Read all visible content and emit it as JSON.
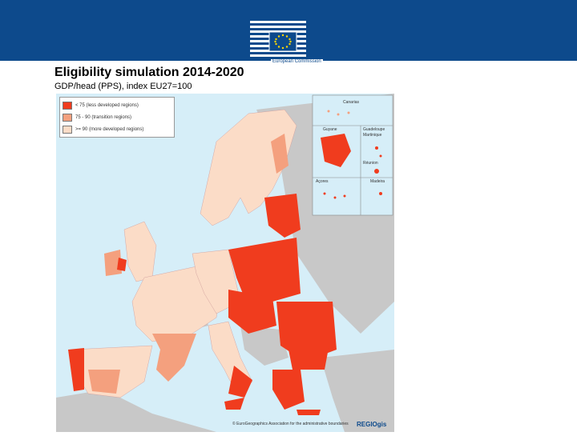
{
  "header": {
    "logo_text": "European Commission"
  },
  "title": "Eligibility simulation 2014-2020",
  "subtitle": "GDP/head (PPS), index EU27=100",
  "legend": {
    "items": [
      {
        "label": "< 75 (less developed regions)",
        "color": "#f03c1e"
      },
      {
        "label": "75 - 90 (transition regions)",
        "color": "#f4a07e"
      },
      {
        "label": ">= 90 (more developed regions)",
        "color": "#fbdcc7"
      }
    ]
  },
  "insets": {
    "canarias": "Canarias",
    "guyane": "Guyane",
    "guadeloupe": "Guadeloupe",
    "martinique": "Martinique",
    "reunion": "Réunion",
    "acores": "Açores",
    "madeira": "Madeira"
  },
  "colors": {
    "sea": "#d6eef8",
    "non_eu": "#c8c8c8",
    "less": "#f03c1e",
    "transition": "#f4a07e",
    "more": "#fbdcc7"
  },
  "credit": "© EuroGeographics Association for the administrative boundaries",
  "regio": "REGIOgis"
}
